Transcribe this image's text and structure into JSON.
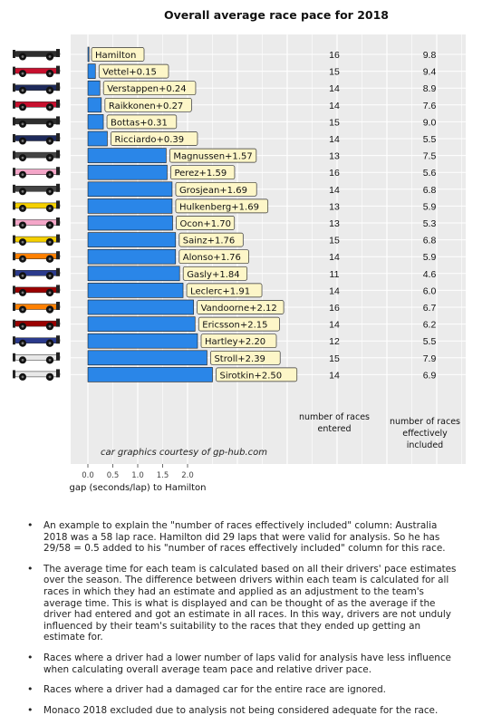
{
  "chart_data": {
    "type": "bar",
    "orientation": "horizontal",
    "title": "Overall average race pace for 2018",
    "xlabel": "gap (seconds/lap) to Hamilton",
    "x_ticks": [
      "0.0",
      "0.5",
      "1.0",
      "1.5",
      "2.0"
    ],
    "xlim": [
      0,
      3.6
    ],
    "credit": "car graphics courtesy of gp-hub.com",
    "col1_header": "number of races entered",
    "col2_header": "number of races effectively included",
    "drivers": [
      {
        "label": "Hamilton",
        "gap": 0.0,
        "races": "16",
        "effective": "9.8",
        "color": "#2e2e2e"
      },
      {
        "label": "Vettel+0.15",
        "gap": 0.15,
        "races": "15",
        "effective": "9.4",
        "color": "#c8102e"
      },
      {
        "label": "Verstappen+0.24",
        "gap": 0.24,
        "races": "14",
        "effective": "8.9",
        "color": "#1e2a5a"
      },
      {
        "label": "Raikkonen+0.27",
        "gap": 0.27,
        "races": "14",
        "effective": "7.6",
        "color": "#c8102e"
      },
      {
        "label": "Bottas+0.31",
        "gap": 0.31,
        "races": "15",
        "effective": "9.0",
        "color": "#2e2e2e"
      },
      {
        "label": "Ricciardo+0.39",
        "gap": 0.39,
        "races": "14",
        "effective": "5.5",
        "color": "#1e2a5a"
      },
      {
        "label": "Magnussen+1.57",
        "gap": 1.57,
        "races": "13",
        "effective": "7.5",
        "color": "#444444"
      },
      {
        "label": "Perez+1.59",
        "gap": 1.59,
        "races": "16",
        "effective": "5.6",
        "color": "#f4a6c8"
      },
      {
        "label": "Grosjean+1.69",
        "gap": 1.69,
        "races": "14",
        "effective": "6.8",
        "color": "#444444"
      },
      {
        "label": "Hulkenberg+1.69",
        "gap": 1.69,
        "races": "13",
        "effective": "5.9",
        "color": "#f5d000"
      },
      {
        "label": "Ocon+1.70",
        "gap": 1.7,
        "races": "13",
        "effective": "5.3",
        "color": "#f4a6c8"
      },
      {
        "label": "Sainz+1.76",
        "gap": 1.76,
        "races": "15",
        "effective": "6.8",
        "color": "#f5d000"
      },
      {
        "label": "Alonso+1.76",
        "gap": 1.76,
        "races": "14",
        "effective": "5.9",
        "color": "#ff8000"
      },
      {
        "label": "Gasly+1.84",
        "gap": 1.84,
        "races": "11",
        "effective": "4.6",
        "color": "#2b3a8c"
      },
      {
        "label": "Leclerc+1.91",
        "gap": 1.91,
        "races": "14",
        "effective": "6.0",
        "color": "#9b0000"
      },
      {
        "label": "Vandoorne+2.12",
        "gap": 2.12,
        "races": "16",
        "effective": "6.7",
        "color": "#ff8000"
      },
      {
        "label": "Ericsson+2.15",
        "gap": 2.15,
        "races": "14",
        "effective": "6.2",
        "color": "#9b0000"
      },
      {
        "label": "Hartley+2.20",
        "gap": 2.2,
        "races": "12",
        "effective": "5.5",
        "color": "#2b3a8c"
      },
      {
        "label": "Stroll+2.39",
        "gap": 2.39,
        "races": "15",
        "effective": "7.9",
        "color": "#e8e8e8"
      },
      {
        "label": "Sirotkin+2.50",
        "gap": 2.5,
        "races": "14",
        "effective": "6.9",
        "color": "#e8e8e8"
      }
    ]
  },
  "colors": {
    "bar": "#2a86e8",
    "label_box": "#fdf6c8",
    "panel": "#ebebeb"
  },
  "notes": [
    "An example to explain the \"number of races effectively included\" column: Australia 2018 was a 58 lap race. Hamilton did 29 laps that were valid for analysis. So he has 29/58 = 0.5 added to his \"number of races effectively included\" column for this race.",
    "The average time for each team is calculated based on all their drivers' pace estimates over the season. The difference between drivers within each team is calculated for all races in which they had an estimate and applied as an adjustment to the team's average time. This is what is displayed and can be thought of as the average if the driver had entered and got an estimate in all races. In this way, drivers are not unduly influenced by their team's suitability to the races that they ended up getting an estimate for.",
    "Races where a driver had a lower number of laps valid for analysis have less influence when calculating overall average team pace and relative driver pace.",
    "Races where a driver had a damaged car for the entire race are ignored.",
    "Monaco 2018 excluded due to analysis not being considered adequate for the race."
  ]
}
